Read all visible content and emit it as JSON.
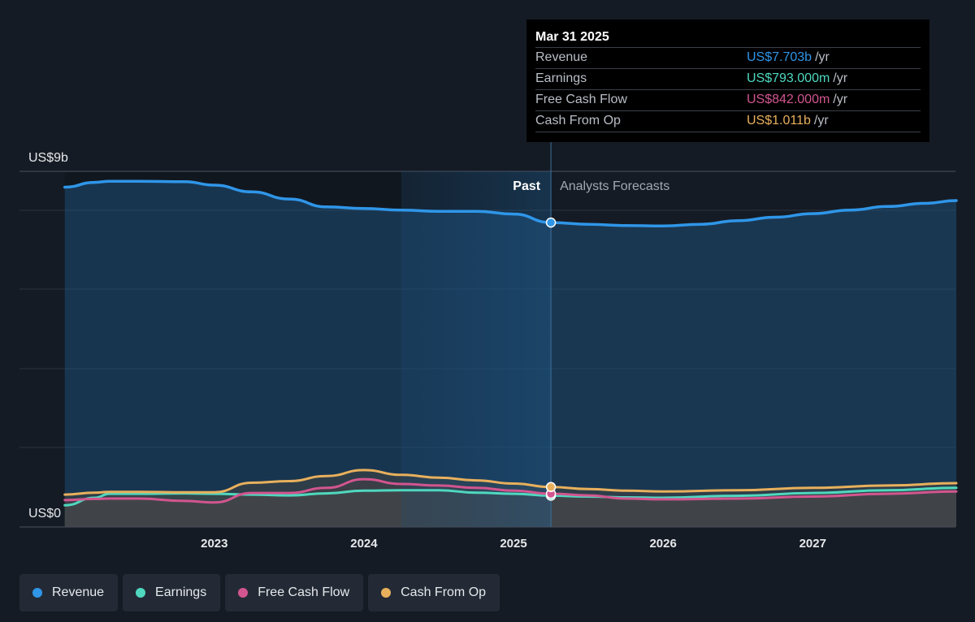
{
  "chart_data": {
    "type": "area",
    "ylim": [
      0,
      9
    ],
    "y_axis_labels": {
      "top": "US$9b",
      "bottom": "US$0"
    },
    "x_tick_labels": [
      "2023",
      "2024",
      "2025",
      "2026",
      "2027"
    ],
    "x_ticks": [
      2023,
      2024,
      2025,
      2026,
      2027
    ],
    "xlim": [
      2021.73,
      2027.96
    ],
    "past_label": "Past",
    "forecast_label": "Analysts Forecasts",
    "divider_x": 2025.25,
    "highlight_start_x": 2024.25,
    "grid": true,
    "legend_position": "bottom-left",
    "series": [
      {
        "name": "Revenue",
        "color": "#2f96e8",
        "x": [
          2022.0,
          2022.2,
          2022.3,
          2022.5,
          2022.8,
          2023.0,
          2023.25,
          2023.5,
          2023.75,
          2024.0,
          2024.25,
          2024.5,
          2024.75,
          2025.0,
          2025.25,
          2025.5,
          2025.75,
          2026.0,
          2026.25,
          2026.5,
          2026.75,
          2027.0,
          2027.25,
          2027.5,
          2027.75,
          2027.96
        ],
        "values": [
          8.6,
          8.72,
          8.75,
          8.75,
          8.74,
          8.65,
          8.48,
          8.3,
          8.1,
          8.06,
          8.02,
          7.99,
          7.99,
          7.92,
          7.703,
          7.66,
          7.63,
          7.62,
          7.66,
          7.75,
          7.84,
          7.93,
          8.02,
          8.11,
          8.19,
          8.26
        ]
      },
      {
        "name": "Earnings",
        "color": "#4fd8bf",
        "x": [
          2022.0,
          2022.2,
          2022.3,
          2022.5,
          2022.8,
          2023.0,
          2023.25,
          2023.5,
          2023.75,
          2024.0,
          2024.25,
          2024.5,
          2024.75,
          2025.0,
          2025.25,
          2025.5,
          2025.75,
          2026.0,
          2026.5,
          2027.0,
          2027.5,
          2027.96
        ],
        "values": [
          0.55,
          0.74,
          0.84,
          0.84,
          0.85,
          0.84,
          0.82,
          0.8,
          0.85,
          0.92,
          0.93,
          0.93,
          0.87,
          0.84,
          0.793,
          0.77,
          0.75,
          0.74,
          0.79,
          0.86,
          0.93,
          0.99
        ]
      },
      {
        "name": "Free Cash Flow",
        "color": "#d2558f",
        "x": [
          2022.0,
          2022.2,
          2022.3,
          2022.5,
          2022.8,
          2023.0,
          2023.25,
          2023.5,
          2023.75,
          2024.0,
          2024.25,
          2024.5,
          2024.75,
          2025.0,
          2025.25,
          2025.5,
          2025.75,
          2026.0,
          2026.5,
          2027.0,
          2027.5,
          2027.96
        ],
        "values": [
          0.68,
          0.71,
          0.72,
          0.72,
          0.66,
          0.62,
          0.86,
          0.86,
          0.99,
          1.21,
          1.09,
          1.05,
          0.99,
          0.92,
          0.842,
          0.8,
          0.72,
          0.7,
          0.72,
          0.77,
          0.84,
          0.9
        ]
      },
      {
        "name": "Cash From Op",
        "color": "#e8b05c",
        "x": [
          2022.0,
          2022.2,
          2022.3,
          2022.5,
          2022.8,
          2023.0,
          2023.25,
          2023.5,
          2023.75,
          2024.0,
          2024.25,
          2024.5,
          2024.75,
          2025.0,
          2025.25,
          2025.5,
          2025.75,
          2026.0,
          2026.5,
          2027.0,
          2027.5,
          2027.96
        ],
        "values": [
          0.82,
          0.87,
          0.89,
          0.89,
          0.88,
          0.88,
          1.12,
          1.16,
          1.29,
          1.44,
          1.32,
          1.25,
          1.18,
          1.1,
          1.011,
          0.96,
          0.92,
          0.9,
          0.93,
          0.99,
          1.05,
          1.11
        ]
      }
    ]
  },
  "tooltip": {
    "date": "Mar 31 2025",
    "rows": [
      {
        "label": "Revenue",
        "value": "US$7.703b",
        "unit": "/yr",
        "color": "#2f96e8"
      },
      {
        "label": "Earnings",
        "value": "US$793.000m",
        "unit": "/yr",
        "color": "#4fd8bf"
      },
      {
        "label": "Free Cash Flow",
        "value": "US$842.000m",
        "unit": "/yr",
        "color": "#d2558f"
      },
      {
        "label": "Cash From Op",
        "value": "US$1.011b",
        "unit": "/yr",
        "color": "#e8b05c"
      }
    ]
  },
  "legend": [
    {
      "label": "Revenue",
      "color": "#2f96e8"
    },
    {
      "label": "Earnings",
      "color": "#4fd8bf"
    },
    {
      "label": "Free Cash Flow",
      "color": "#d2558f"
    },
    {
      "label": "Cash From Op",
      "color": "#e8b05c"
    }
  ]
}
